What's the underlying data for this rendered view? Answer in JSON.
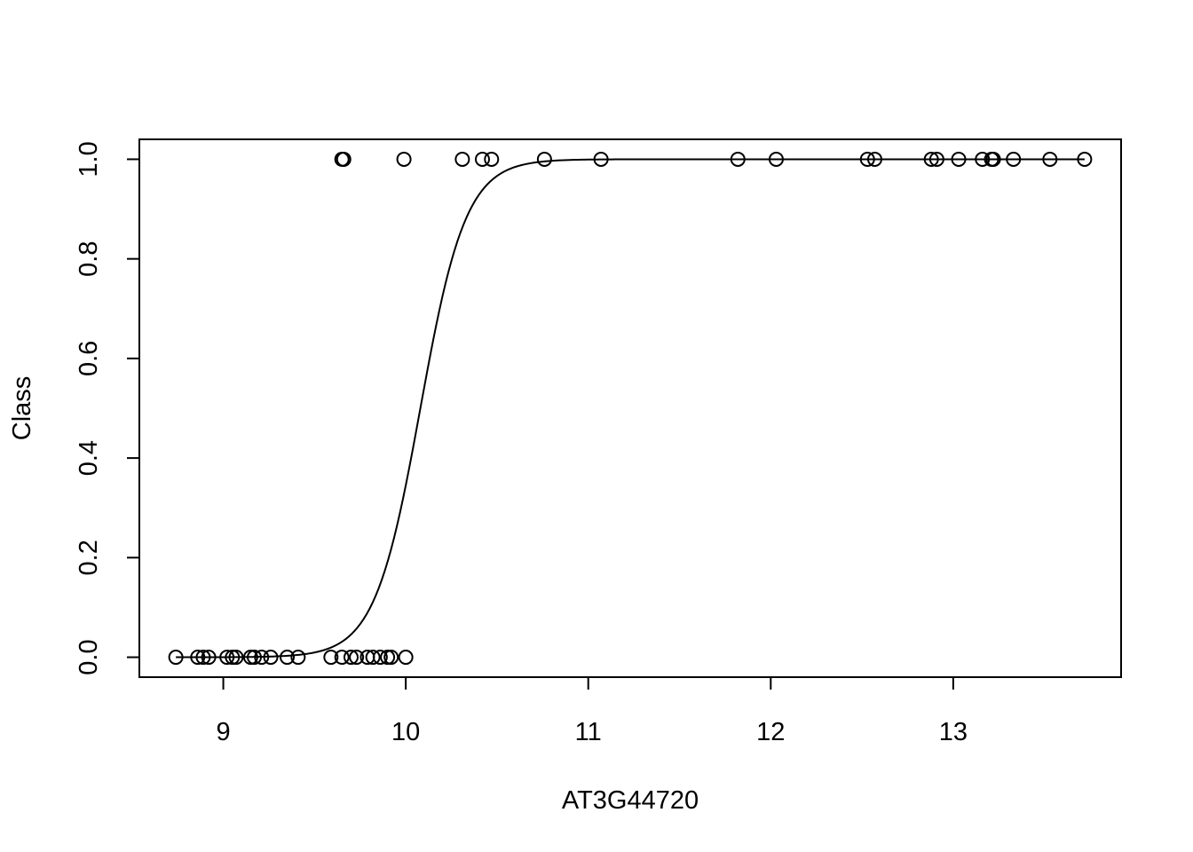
{
  "chart_data": {
    "type": "scatter",
    "title": "",
    "xlabel": "AT3G44720",
    "ylabel": "Class",
    "xlim": [
      8.54,
      13.92
    ],
    "ylim": [
      -0.04,
      1.04
    ],
    "x_ticks": [
      9,
      10,
      11,
      12,
      13
    ],
    "x_tick_labels": [
      "9",
      "10",
      "11",
      "12",
      "13"
    ],
    "y_ticks": [
      0.0,
      0.2,
      0.4,
      0.6,
      0.8,
      1.0
    ],
    "y_tick_labels": [
      "0.0",
      "0.2",
      "0.4",
      "0.6",
      "0.8",
      "1.0"
    ],
    "grid": false,
    "points": [
      {
        "x": 8.74,
        "y": 0
      },
      {
        "x": 8.86,
        "y": 0
      },
      {
        "x": 8.89,
        "y": 0
      },
      {
        "x": 8.92,
        "y": 0
      },
      {
        "x": 9.02,
        "y": 0
      },
      {
        "x": 9.05,
        "y": 0
      },
      {
        "x": 9.07,
        "y": 0
      },
      {
        "x": 9.15,
        "y": 0
      },
      {
        "x": 9.17,
        "y": 0
      },
      {
        "x": 9.21,
        "y": 0
      },
      {
        "x": 9.26,
        "y": 0
      },
      {
        "x": 9.35,
        "y": 0
      },
      {
        "x": 9.41,
        "y": 0
      },
      {
        "x": 9.59,
        "y": 0
      },
      {
        "x": 9.65,
        "y": 0
      },
      {
        "x": 9.7,
        "y": 0
      },
      {
        "x": 9.73,
        "y": 0
      },
      {
        "x": 9.79,
        "y": 0
      },
      {
        "x": 9.82,
        "y": 0
      },
      {
        "x": 9.86,
        "y": 0
      },
      {
        "x": 9.9,
        "y": 0
      },
      {
        "x": 9.92,
        "y": 0
      },
      {
        "x": 10.0,
        "y": 0
      },
      {
        "x": 9.65,
        "y": 1
      },
      {
        "x": 9.66,
        "y": 1
      },
      {
        "x": 9.99,
        "y": 1
      },
      {
        "x": 10.31,
        "y": 1
      },
      {
        "x": 10.42,
        "y": 1
      },
      {
        "x": 10.47,
        "y": 1
      },
      {
        "x": 10.76,
        "y": 1
      },
      {
        "x": 11.07,
        "y": 1
      },
      {
        "x": 11.82,
        "y": 1
      },
      {
        "x": 12.03,
        "y": 1
      },
      {
        "x": 12.53,
        "y": 1
      },
      {
        "x": 12.57,
        "y": 1
      },
      {
        "x": 12.88,
        "y": 1
      },
      {
        "x": 12.91,
        "y": 1
      },
      {
        "x": 13.03,
        "y": 1
      },
      {
        "x": 13.16,
        "y": 1
      },
      {
        "x": 13.21,
        "y": 1
      },
      {
        "x": 13.22,
        "y": 1
      },
      {
        "x": 13.33,
        "y": 1
      },
      {
        "x": 13.53,
        "y": 1
      },
      {
        "x": 13.72,
        "y": 1
      }
    ],
    "fitted_curve": {
      "type": "logistic",
      "midpoint": 10.08,
      "slope": 8.0,
      "x_range": [
        8.74,
        13.72
      ]
    }
  }
}
